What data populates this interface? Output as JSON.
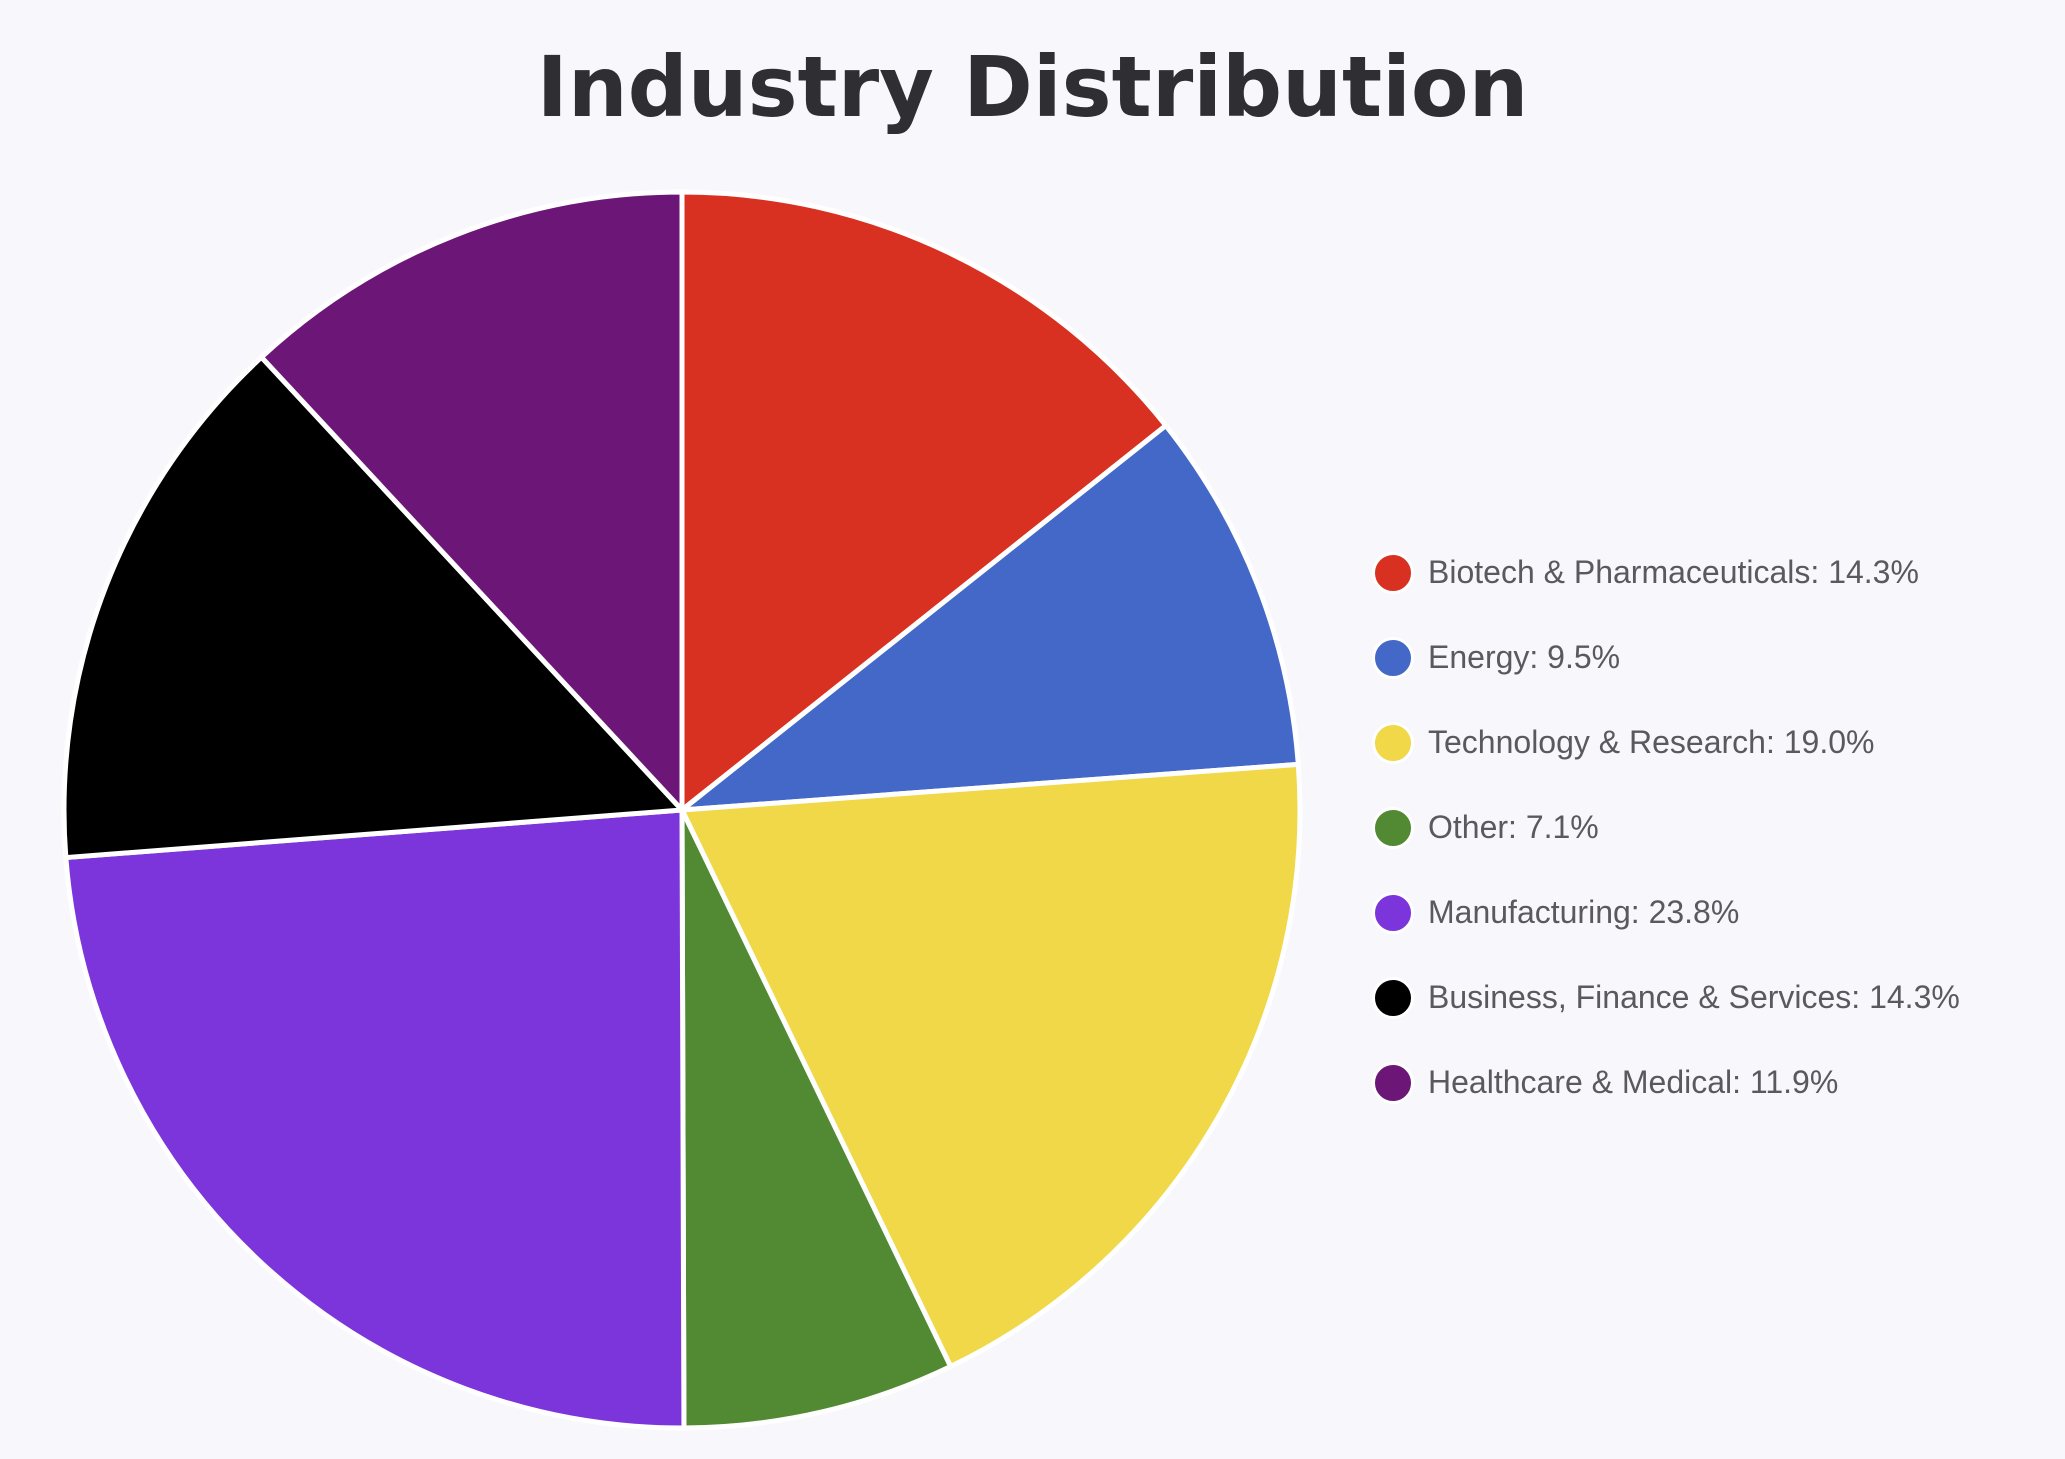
{
  "chart_data": {
    "type": "pie",
    "title": "Industry Distribution",
    "slices": [
      {
        "label": "Biotech & Pharmaceuticals",
        "value": 14.3,
        "display": "14.3%",
        "color": "#d93121"
      },
      {
        "label": "Energy",
        "value": 9.5,
        "display": "9.5%",
        "color": "#4468c7"
      },
      {
        "label": "Technology & Research",
        "value": 19.0,
        "display": "19.0%",
        "color": "#f0d848"
      },
      {
        "label": "Other",
        "value": 7.1,
        "display": "7.1%",
        "color": "#518a32"
      },
      {
        "label": "Manufacturing",
        "value": 23.8,
        "display": "23.8%",
        "color": "#7c35db"
      },
      {
        "label": "Business, Finance & Services",
        "value": 14.3,
        "display": "14.3%",
        "color": "#000000"
      },
      {
        "label": "Healthcare & Medical",
        "value": 11.9,
        "display": "11.9%",
        "color": "#6c1677"
      }
    ],
    "start_angle": "12 o'clock",
    "direction": "clockwise",
    "legend_position": "right"
  }
}
